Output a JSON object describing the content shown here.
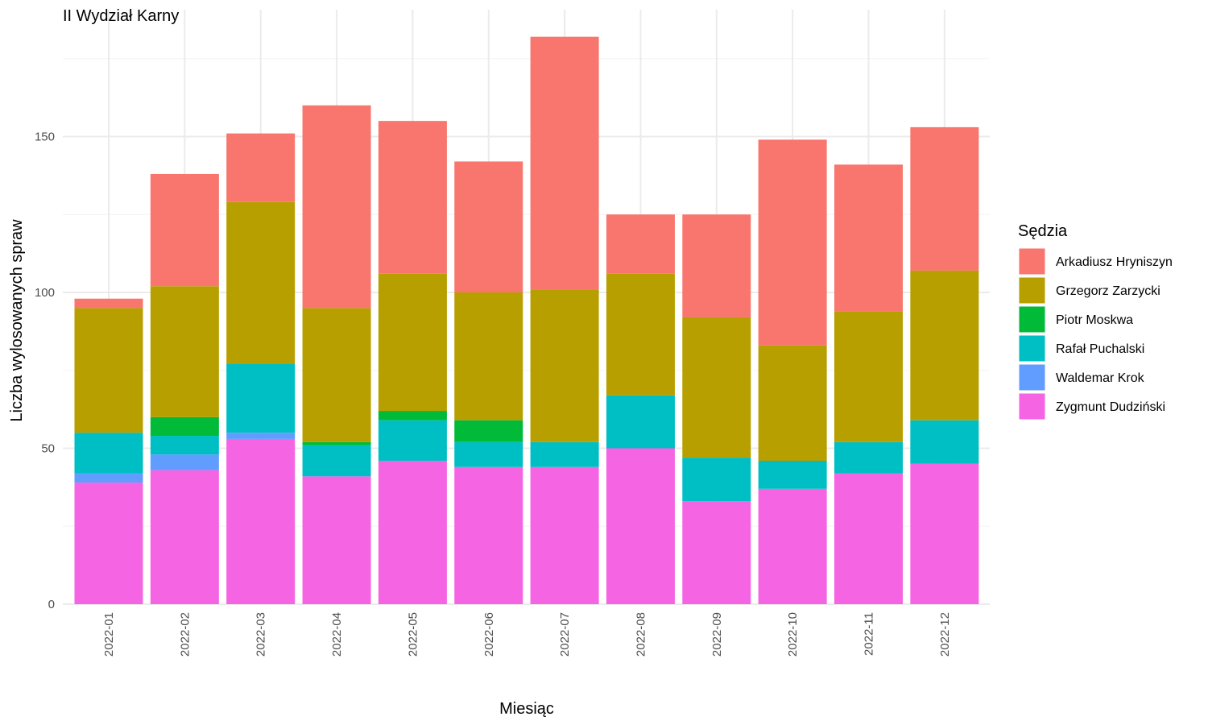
{
  "chart_data": {
    "type": "bar",
    "stacked": true,
    "title": "II Wydział Karny",
    "xlabel": "Miesiąc",
    "ylabel": "Liczba wylosowanych spraw",
    "ylim": [
      0,
      190
    ],
    "yticks": [
      0,
      50,
      100,
      150
    ],
    "grid": true,
    "legend_title": "Sędzia",
    "legend_position": "right",
    "categories": [
      "2022-01",
      "2022-02",
      "2022-03",
      "2022-04",
      "2022-05",
      "2022-06",
      "2022-07",
      "2022-08",
      "2022-09",
      "2022-10",
      "2022-11",
      "2022-12"
    ],
    "stack_order_bottom_to_top": [
      "Zygmunt Dudziński",
      "Waldemar Krok",
      "Rafał Puchalski",
      "Piotr Moskwa",
      "Grzegorz Zarzycki",
      "Arkadiusz Hryniszyn"
    ],
    "series": [
      {
        "name": "Arkadiusz Hryniszyn",
        "color": "#F8766D",
        "values": [
          3,
          36,
          22,
          65,
          49,
          42,
          81,
          19,
          33,
          66,
          47,
          46
        ]
      },
      {
        "name": "Grzegorz Zarzycki",
        "color": "#B79F00",
        "values": [
          40,
          42,
          52,
          43,
          44,
          41,
          49,
          39,
          45,
          37,
          42,
          48
        ]
      },
      {
        "name": "Piotr Moskwa",
        "color": "#00BA38",
        "values": [
          0,
          6,
          0,
          1,
          3,
          7,
          0,
          0,
          0,
          0,
          0,
          0
        ]
      },
      {
        "name": "Rafał Puchalski",
        "color": "#00BFC4",
        "values": [
          13,
          6,
          22,
          10,
          13,
          8,
          8,
          17,
          14,
          9,
          10,
          14
        ]
      },
      {
        "name": "Waldemar Krok",
        "color": "#619CFF",
        "values": [
          3,
          5,
          2,
          0,
          0,
          0,
          0,
          0,
          0,
          0,
          0,
          0
        ]
      },
      {
        "name": "Zygmunt Dudziński",
        "color": "#F564E3",
        "values": [
          39,
          43,
          53,
          41,
          46,
          44,
          44,
          50,
          33,
          37,
          42,
          45
        ]
      }
    ]
  }
}
